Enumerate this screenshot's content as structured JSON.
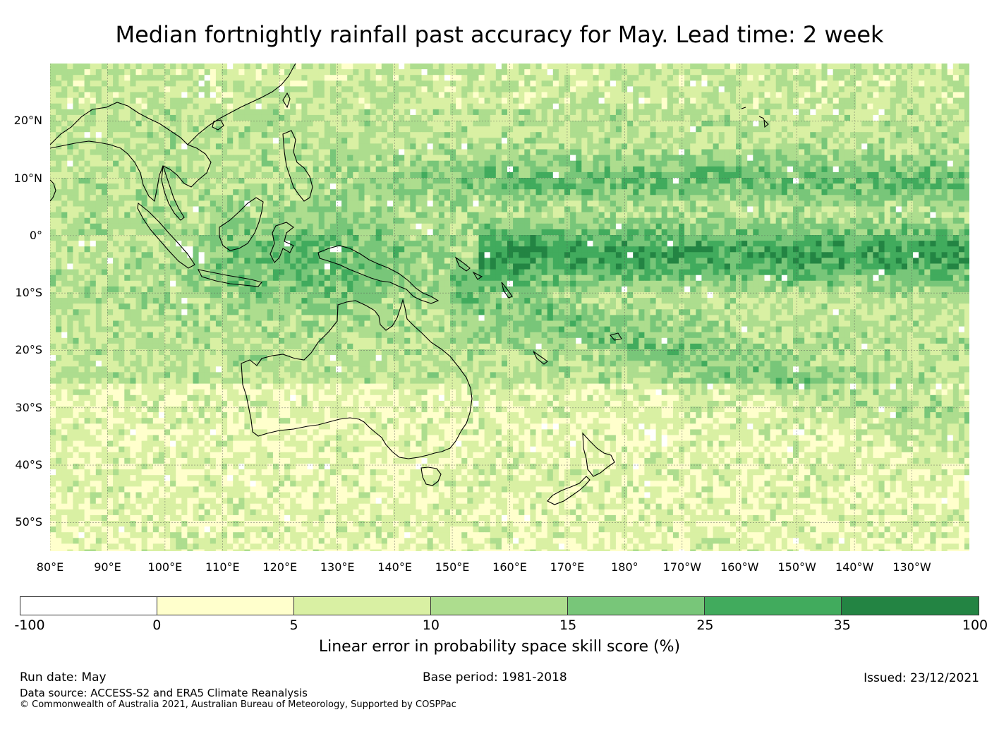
{
  "title": "Median fortnightly rainfall past accuracy for May. Lead time: 2 week",
  "map": {
    "lat_labels": [
      "20°N",
      "10°N",
      "0°",
      "10°S",
      "20°S",
      "30°S",
      "40°S",
      "50°S"
    ],
    "lat_values": [
      20,
      10,
      0,
      -10,
      -20,
      -30,
      -40,
      -50
    ],
    "lon_labels": [
      "80°E",
      "90°E",
      "100°E",
      "110°E",
      "120°E",
      "130°E",
      "140°E",
      "150°E",
      "160°E",
      "170°E",
      "180°",
      "170°W",
      "160°W",
      "150°W",
      "140°W",
      "130°W"
    ],
    "lon_values": [
      80,
      90,
      100,
      110,
      120,
      130,
      140,
      150,
      160,
      170,
      180,
      190,
      200,
      210,
      220,
      230
    ],
    "lat_range": [
      -55,
      30
    ],
    "lon_range": [
      80,
      240
    ]
  },
  "colorbar": {
    "ticks": [
      "-100",
      "0",
      "5",
      "10",
      "15",
      "25",
      "35",
      "100"
    ],
    "colors": [
      "#ffffff",
      "#ffffcc",
      "#d9f0a3",
      "#addd8e",
      "#78c679",
      "#41ab5d",
      "#238443"
    ],
    "label": "Linear error in probability space skill score (%)"
  },
  "footer": {
    "run_date": "Run date: May",
    "data_source": "Data source: ACCESS-S2 and ERA5 Climate Reanalysis",
    "copyright": "© Commonwealth of Australia 2021, Australian Bureau of Meteorology, Supported by COSPPac",
    "base_period": "Base period: 1981-2018",
    "issued": "Issued: 23/12/2021"
  }
}
